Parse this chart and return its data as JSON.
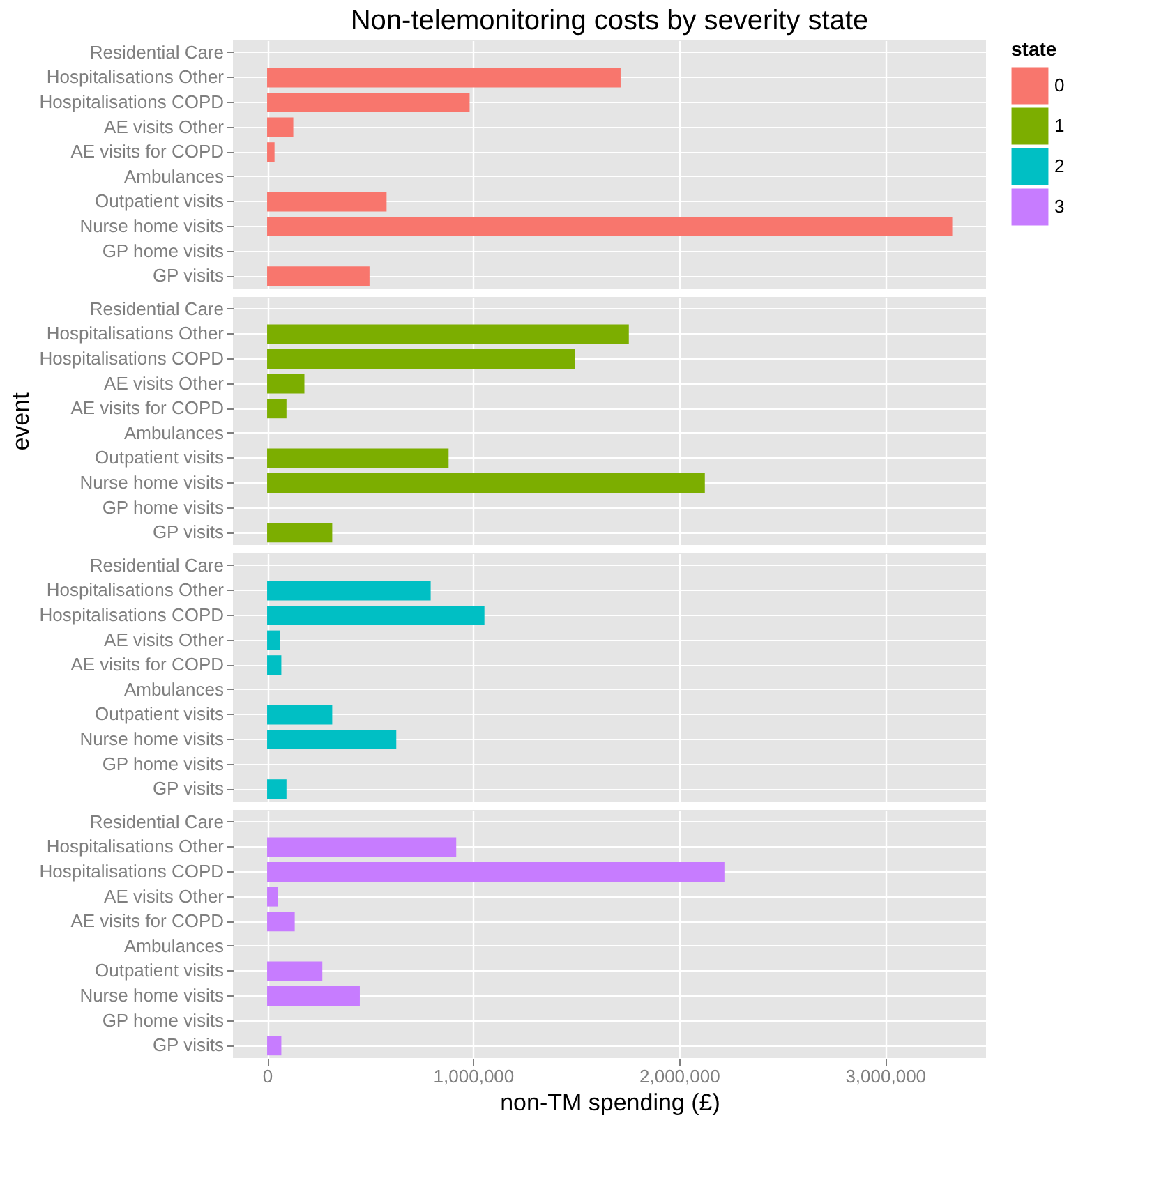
{
  "chart_data": [
    {
      "type": "bar",
      "orientation": "horizontal",
      "title": "Non-telemonitoring costs by severity state",
      "legend_title": "state",
      "legend": "right",
      "grid": true,
      "tick_labels": "y",
      "categories": [
        "Residential Care",
        "Hospitalisations Other",
        "Hospitalisations COPD",
        "AE visits Other",
        "AE visits for COPD",
        "Ambulances",
        "Outpatient visits",
        "Nurse home visits",
        "GP home visits",
        "GP visits"
      ],
      "series": [
        {
          "name": "0",
          "color": "#f8766d",
          "values": [
            0,
            1716000,
            983000,
            127000,
            36000,
            0,
            580000,
            3326000,
            0,
            497000
          ]
        }
      ],
      "xlim": [
        -166000,
        3490000
      ],
      "xticks": [
        0,
        1000000,
        2000000,
        3000000
      ]
    },
    {
      "type": "bar",
      "orientation": "horizontal",
      "grid": true,
      "tick_labels": "y",
      "ylabel": "event",
      "categories": [
        "Residential Care",
        "Hospitalisations Other",
        "Hospitalisations COPD",
        "AE visits Other",
        "AE visits for COPD",
        "Ambulances",
        "Outpatient visits",
        "Nurse home visits",
        "GP home visits",
        "GP visits"
      ],
      "series": [
        {
          "name": "1",
          "color": "#7cae00",
          "values": [
            0,
            1756000,
            1494000,
            181000,
            94000,
            0,
            881000,
            2125000,
            0,
            316000
          ]
        }
      ],
      "xlim": [
        -166000,
        3490000
      ],
      "xticks": [
        0,
        1000000,
        2000000,
        3000000
      ]
    },
    {
      "type": "bar",
      "orientation": "horizontal",
      "grid": true,
      "tick_labels": "y",
      "categories": [
        "Residential Care",
        "Hospitalisations Other",
        "Hospitalisations COPD",
        "AE visits Other",
        "AE visits for COPD",
        "Ambulances",
        "Outpatient visits",
        "Nurse home visits",
        "GP home visits",
        "GP visits"
      ],
      "series": [
        {
          "name": "2",
          "color": "#00bfc4",
          "values": [
            0,
            794000,
            1055000,
            62000,
            69000,
            0,
            316000,
            627000,
            0,
            94000
          ]
        }
      ],
      "xlim": [
        -166000,
        3490000
      ],
      "xticks": [
        0,
        1000000,
        2000000,
        3000000
      ]
    },
    {
      "type": "bar",
      "orientation": "horizontal",
      "grid": true,
      "xlabel": "non-TM spending (£)",
      "categories": [
        "Residential Care",
        "Hospitalisations Other",
        "Hospitalisations COPD",
        "AE visits Other",
        "AE visits for COPD",
        "Ambulances",
        "Outpatient visits",
        "Nurse home visits",
        "GP home visits",
        "GP visits"
      ],
      "series": [
        {
          "name": "3",
          "color": "#c77cff",
          "values": [
            0,
            918000,
            2220000,
            51000,
            134000,
            0,
            268000,
            450000,
            0,
            69000
          ]
        }
      ],
      "xlim": [
        -166000,
        3490000
      ],
      "xticks": [
        {
          "value": 0,
          "label": "0"
        },
        {
          "value": 1000000,
          "label": "1,000,000"
        },
        {
          "value": 2000000,
          "label": "2,000,000"
        },
        {
          "value": 3000000,
          "label": "3,000,000"
        }
      ]
    }
  ]
}
